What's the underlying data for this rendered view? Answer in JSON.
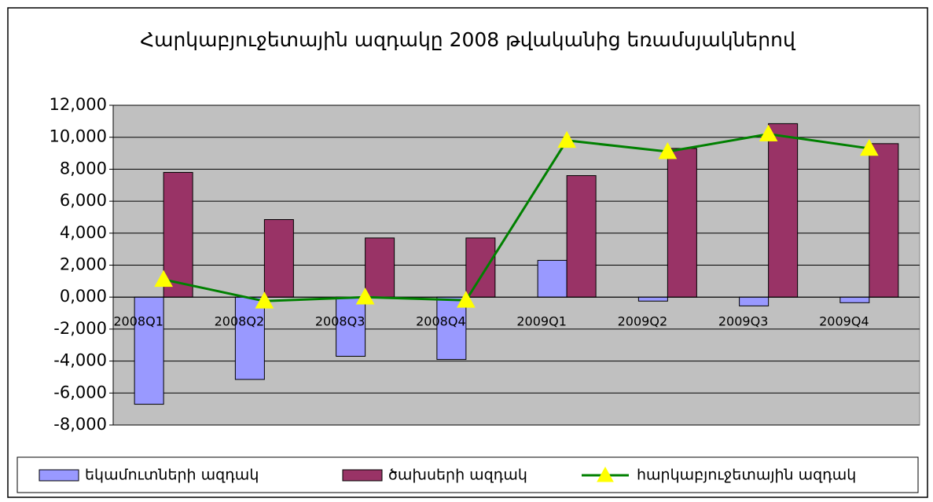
{
  "chart_data": {
    "type": "bar",
    "title": "Հարկաբյուջետային ազդակը 2008 թվականից եռամսյակներով",
    "categories": [
      "2008Q1",
      "2008Q2",
      "2008Q3",
      "2008Q4",
      "2009Q1",
      "2009Q2",
      "2009Q3",
      "2009Q4"
    ],
    "series": [
      {
        "name": "եկամուտների ազդակ",
        "color": "#9999ff",
        "type": "bar",
        "values": [
          -6.7,
          -5.15,
          -3.7,
          -3.9,
          2.3,
          -0.25,
          -0.55,
          -0.35
        ]
      },
      {
        "name": "ծախսերի ազդակ",
        "color": "#993366",
        "type": "bar",
        "values": [
          7.8,
          4.85,
          3.7,
          3.7,
          7.6,
          9.3,
          10.85,
          9.6
        ]
      },
      {
        "name": "հարկաբյուջետային ազդակ",
        "color": "#008000",
        "marker_color": "#ffff00",
        "type": "line",
        "values": [
          1.1,
          -0.25,
          0,
          -0.2,
          9.8,
          9.1,
          10.2,
          9.3
        ]
      }
    ],
    "ylim": [
      -8,
      12
    ],
    "yticks": [
      {
        "value": -8,
        "label": "-8,000"
      },
      {
        "value": -6,
        "label": "-6,000"
      },
      {
        "value": -4,
        "label": "-4,000"
      },
      {
        "value": -2,
        "label": "-2,000"
      },
      {
        "value": 0,
        "label": "0,000"
      },
      {
        "value": 2,
        "label": "2,000"
      },
      {
        "value": 4,
        "label": "4,000"
      },
      {
        "value": 6,
        "label": "6,000"
      },
      {
        "value": 8,
        "label": "8,000"
      },
      {
        "value": 10,
        "label": "10,000"
      },
      {
        "value": 12,
        "label": "12,000"
      }
    ],
    "grid": true,
    "legend": "bottom"
  }
}
